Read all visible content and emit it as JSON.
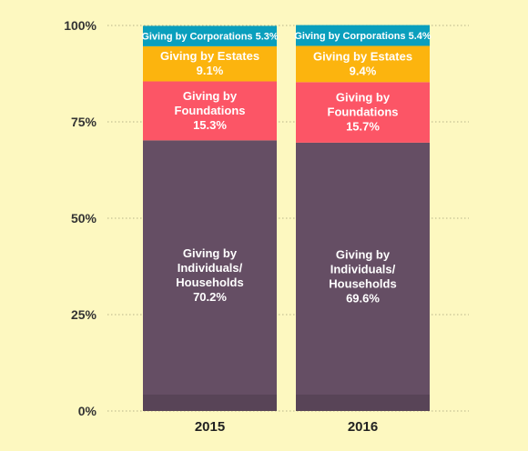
{
  "chart_data": {
    "type": "bar",
    "stacked": true,
    "title": "",
    "xlabel": "",
    "ylabel": "",
    "categories": [
      "2015",
      "2016"
    ],
    "ylim": [
      0,
      100
    ],
    "yticks": [
      "0%",
      "25%",
      "50%",
      "75%",
      "100%"
    ],
    "grid": "dotted horizontal",
    "series": [
      {
        "key": "individuals",
        "label_lines": [
          "Giving by",
          "Individuals/",
          "Households"
        ],
        "value_labels": [
          "70.2%",
          "69.6%"
        ],
        "values": [
          70.2,
          69.6
        ],
        "color": "#654e64"
      },
      {
        "key": "foundations",
        "label_lines": [
          "Giving by",
          "Foundations"
        ],
        "value_labels": [
          "15.3%",
          "15.7%"
        ],
        "values": [
          15.3,
          15.7
        ],
        "color": "#fc5566"
      },
      {
        "key": "estates",
        "label_lines": [
          "Giving by Estates"
        ],
        "value_labels": [
          "9.1%",
          "9.4%"
        ],
        "values": [
          9.1,
          9.4
        ],
        "color": "#fcb40e"
      },
      {
        "key": "corporations",
        "label_lines": [
          "Giving by Corporations"
        ],
        "value_labels": [
          "5.3%",
          "5.4%"
        ],
        "values": [
          5.3,
          5.4
        ],
        "color": "#0a9fbd"
      }
    ]
  }
}
